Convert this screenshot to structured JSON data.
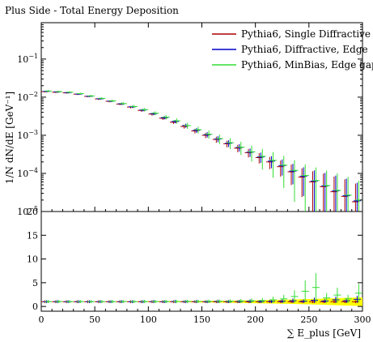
{
  "chart_data": [
    {
      "panel": "main",
      "type": "scatter",
      "title": "Plus Side - Total Energy Deposition",
      "xlabel": "∑ E_plus [GeV]",
      "ylabel": "1/N dN/dE [GeV⁻¹]",
      "yscale": "log",
      "xlim": [
        0,
        300
      ],
      "ylim": [
        1e-05,
        0.9
      ],
      "legend_position": "top-right",
      "x_ticks": [
        "0",
        "50",
        "100",
        "150",
        "200",
        "250",
        "300"
      ],
      "y_ticks": [
        {
          "value": 0.1,
          "mantissa": "10",
          "exp": "−1"
        },
        {
          "value": 0.01,
          "mantissa": "10",
          "exp": "−2"
        },
        {
          "value": 0.001,
          "mantissa": "10",
          "exp": "−3"
        },
        {
          "value": 0.0001,
          "mantissa": "10",
          "exp": "−4"
        },
        {
          "value": 1e-05,
          "mantissa": "10",
          "exp": "−5"
        }
      ],
      "series": [
        {
          "name": "Pythia6, Single Diffractive",
          "color": "#aa0000",
          "x": [
            5,
            15,
            25,
            35,
            45,
            55,
            65,
            75,
            85,
            95,
            105,
            115,
            125,
            135,
            145,
            155,
            165,
            175,
            185,
            195,
            205,
            215,
            225,
            235,
            245,
            255,
            265,
            275,
            285,
            295
          ],
          "y": [
            0.014,
            0.0135,
            0.013,
            0.012,
            0.0105,
            0.009,
            0.0078,
            0.0066,
            0.0055,
            0.0045,
            0.0036,
            0.0028,
            0.0022,
            0.0017,
            0.0013,
            0.001,
            0.00078,
            0.0006,
            0.00046,
            0.00035,
            0.00026,
            0.0002,
            0.00015,
            0.00011,
            8e-05,
            6e-05,
            4.5e-05,
            3.3e-05,
            2.5e-05,
            1.8e-05
          ],
          "yerr": [
            0.05,
            0.05,
            0.05,
            0.05,
            0.05,
            0.06,
            0.06,
            0.07,
            0.07,
            0.08,
            0.09,
            0.1,
            0.1,
            0.12,
            0.14,
            0.16,
            0.18,
            0.2,
            0.22,
            0.25,
            0.3,
            0.35,
            0.45,
            0.55,
            0.7,
            0.9,
            1.2,
            1.5,
            1.8,
            2.0
          ]
        },
        {
          "name": "Pythia6, Diffractive, Edge",
          "color": "#0000cc",
          "x": [
            5,
            15,
            25,
            35,
            45,
            55,
            65,
            75,
            85,
            95,
            105,
            115,
            125,
            135,
            145,
            155,
            165,
            175,
            185,
            195,
            205,
            215,
            225,
            235,
            245,
            255,
            265,
            275,
            285,
            295
          ],
          "y": [
            0.0142,
            0.0138,
            0.0132,
            0.0121,
            0.0106,
            0.0091,
            0.0079,
            0.0067,
            0.0056,
            0.0046,
            0.0037,
            0.0029,
            0.0023,
            0.0018,
            0.00135,
            0.00104,
            0.0008,
            0.00062,
            0.00048,
            0.00036,
            0.00027,
            0.00021,
            0.00016,
            0.000115,
            8.5e-05,
            6.3e-05,
            4.7e-05,
            3.5e-05,
            2.6e-05,
            1.9e-05
          ],
          "yerr": [
            0.05,
            0.05,
            0.05,
            0.05,
            0.05,
            0.06,
            0.06,
            0.07,
            0.07,
            0.08,
            0.09,
            0.1,
            0.1,
            0.12,
            0.14,
            0.16,
            0.18,
            0.2,
            0.22,
            0.25,
            0.3,
            0.35,
            0.45,
            0.55,
            0.7,
            0.9,
            1.2,
            1.5,
            1.8,
            2.0
          ]
        },
        {
          "name": "Pythia6, MinBias, Edge gap",
          "color": "#33dd33",
          "x": [
            5,
            15,
            25,
            35,
            45,
            55,
            65,
            75,
            85,
            95,
            105,
            115,
            125,
            135,
            145,
            155,
            165,
            175,
            185,
            195,
            205,
            215,
            225,
            235,
            245,
            255,
            265,
            275,
            285,
            295
          ],
          "y": [
            0.0145,
            0.014,
            0.0135,
            0.0124,
            0.0108,
            0.0093,
            0.008,
            0.0068,
            0.0057,
            0.0047,
            0.0038,
            0.003,
            0.0024,
            0.0018,
            0.0014,
            0.00107,
            0.00082,
            0.00064,
            0.00049,
            0.00037,
            0.00028,
            0.00022,
            0.000165,
            0.00012,
            8.8e-05,
            6.5e-05,
            4.8e-05,
            3.6e-05,
            2.7e-05,
            2e-05
          ],
          "yerr": [
            0.06,
            0.06,
            0.06,
            0.06,
            0.07,
            0.07,
            0.08,
            0.09,
            0.1,
            0.11,
            0.12,
            0.14,
            0.16,
            0.18,
            0.2,
            0.24,
            0.28,
            0.32,
            0.38,
            0.45,
            0.55,
            0.65,
            0.75,
            0.85,
            0.95,
            1.2,
            1.5,
            1.8,
            2.0,
            2.2
          ]
        }
      ]
    },
    {
      "panel": "ratio",
      "type": "scatter",
      "xlabel": "∑ E_plus [GeV]",
      "xlim": [
        0,
        300
      ],
      "ylim": [
        -1,
        20
      ],
      "y_ticks": [
        "0",
        "5",
        "10",
        "15",
        "20"
      ],
      "x_ticks": [
        "0",
        "50",
        "100",
        "150",
        "200",
        "250",
        "300"
      ],
      "band": {
        "color": "#ffff00",
        "x": [
          0,
          300
        ],
        "halfwidth": [
          0.05,
          0.9
        ]
      },
      "series": [
        {
          "name": "Pythia6, Single Diffractive",
          "color": "#aa0000",
          "x": [
            5,
            15,
            25,
            35,
            45,
            55,
            65,
            75,
            85,
            95,
            105,
            115,
            125,
            135,
            145,
            155,
            165,
            175,
            185,
            195,
            205,
            215,
            225,
            235,
            245,
            255,
            265,
            275,
            285,
            295
          ],
          "y": [
            1,
            1,
            1,
            1,
            1,
            1,
            1,
            1,
            1,
            1,
            1,
            1,
            1,
            1,
            1,
            1,
            1,
            1,
            1,
            1,
            1,
            1,
            1,
            1,
            1,
            1,
            1,
            1,
            1,
            1
          ]
        },
        {
          "name": "Pythia6, Diffractive, Edge",
          "color": "#0000cc",
          "x": [
            5,
            15,
            25,
            35,
            45,
            55,
            65,
            75,
            85,
            95,
            105,
            115,
            125,
            135,
            145,
            155,
            165,
            175,
            185,
            195,
            205,
            215,
            225,
            235,
            245,
            255,
            265,
            275,
            285,
            295
          ],
          "y": [
            1.01,
            1.02,
            1.0,
            1.01,
            1.0,
            1.01,
            1.0,
            1.02,
            1.0,
            1.01,
            1.03,
            1.0,
            1.05,
            1.02,
            1.04,
            1.0,
            1.06,
            1.03,
            1.05,
            1.1,
            1.04,
            1.08,
            1.12,
            1.2,
            1.1,
            1.3,
            1.15,
            1.4,
            1.2,
            1.5
          ]
        },
        {
          "name": "Pythia6, MinBias, Edge gap",
          "color": "#33dd33",
          "x": [
            5,
            15,
            25,
            35,
            45,
            55,
            65,
            75,
            85,
            95,
            105,
            115,
            125,
            135,
            145,
            155,
            165,
            175,
            185,
            195,
            205,
            215,
            225,
            235,
            245,
            255,
            265,
            275,
            285,
            295
          ],
          "y": [
            1.03,
            1.04,
            1.02,
            1.03,
            1.03,
            1.02,
            1.03,
            1.04,
            1.03,
            1.05,
            1.04,
            1.06,
            1.05,
            1.07,
            1.06,
            1.08,
            1.1,
            1.12,
            1.15,
            1.2,
            1.25,
            1.4,
            1.6,
            2.1,
            3.2,
            4.0,
            1.8,
            2.4,
            1.6,
            2.8
          ]
        }
      ]
    }
  ]
}
